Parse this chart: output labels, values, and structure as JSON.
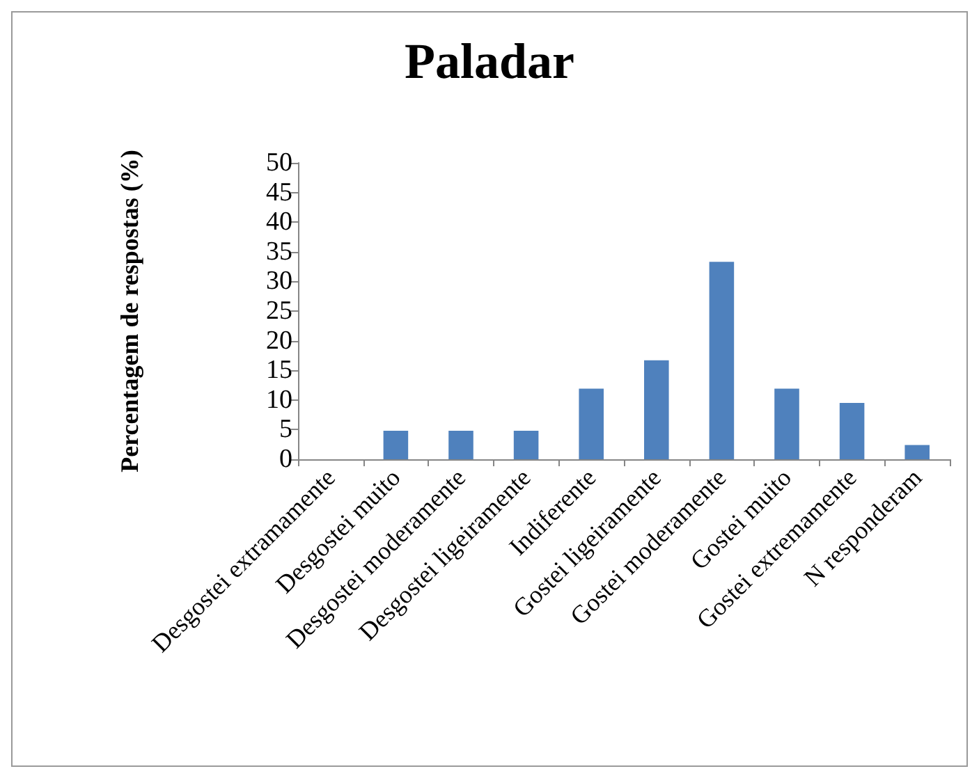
{
  "chart_data": {
    "type": "bar",
    "title": "Paladar",
    "ylabel": "Percentagem de respostas (%)",
    "categories": [
      "Desgostei extramamente",
      "Desgostei muito",
      "Desgostei moderamente",
      "Desgostei ligeiramente",
      "Indiferente",
      "Gostei ligeiramente",
      "Gostei moderamente",
      "Gostei muito",
      "Gostei extremamente",
      "N responderam"
    ],
    "values": [
      0,
      4.8,
      4.8,
      4.8,
      11.9,
      16.7,
      33.3,
      11.9,
      9.5,
      2.4
    ],
    "color": "#4f81bd",
    "ylim": [
      0,
      50
    ],
    "yticks": [
      0,
      5,
      10,
      15,
      20,
      25,
      30,
      35,
      40,
      45,
      50
    ],
    "grid": false
  }
}
